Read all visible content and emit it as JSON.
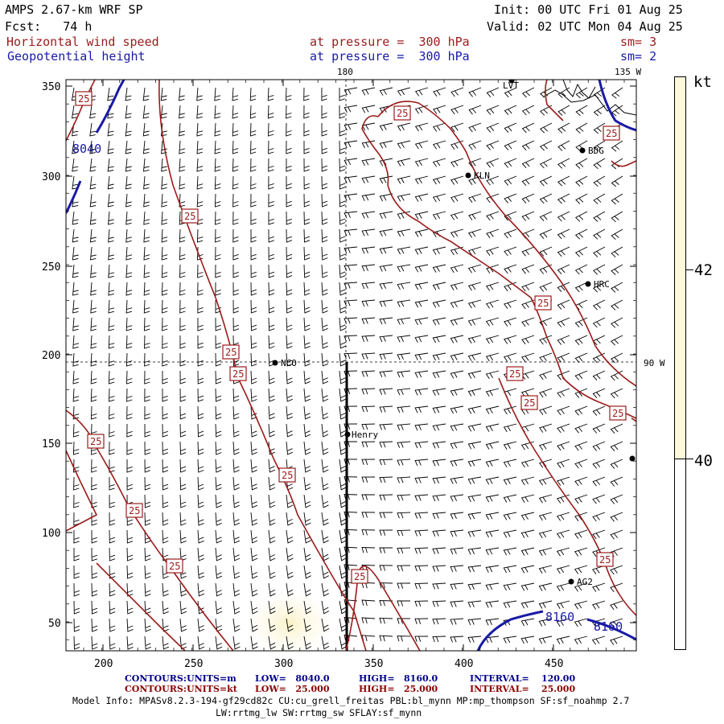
{
  "header": {
    "model": "AMPS 2.67-km WRF SP",
    "init": "Init: 00 UTC Fri 01 Aug 25",
    "fcst": "Fcst:   74 h",
    "valid": "Valid: 02 UTC Mon 04 Aug 25",
    "field1_name": "Horizontal wind speed",
    "field1_level": "at pressure =  300 hPa",
    "field1_sm": "sm= 3",
    "field2_name": "Geopotential height",
    "field2_level": "at pressure =  300 hPa",
    "field2_sm": "sm= 2"
  },
  "map": {
    "meridian_labels": [
      "180",
      "135 W",
      "90 W"
    ],
    "x_ticks": [
      "200",
      "250",
      "300",
      "350",
      "400",
      "450"
    ],
    "y_ticks": [
      "350",
      "300",
      "250",
      "200",
      "150",
      "100",
      "50"
    ],
    "stations": [
      {
        "name": "LVT"
      },
      {
        "name": "BDG"
      },
      {
        "name": "KLN"
      },
      {
        "name": "HRC"
      },
      {
        "name": "NCO"
      },
      {
        "name": "Henry"
      },
      {
        "name": "AG2"
      },
      {
        "name": ""
      }
    ],
    "wind_contour_label": "25",
    "height_contour_labels": [
      "8040",
      "8160",
      "8160"
    ]
  },
  "colorbar": {
    "unit": "kt",
    "labels": [
      "42",
      "40"
    ],
    "colors": [
      "#fdf8dc",
      "#ffffff"
    ]
  },
  "footer": {
    "row1": {
      "label": "CONTOURS:",
      "units": "UNITS=m",
      "low": "LOW=   8040.0",
      "high": "HIGH=   8160.0",
      "interval": "INTERVAL=    120.00"
    },
    "row2": {
      "label": "CONTOURS:",
      "units": "UNITS=kt",
      "low": "LOW=   25.000",
      "high": "HIGH=   25.000",
      "interval": "INTERVAL=    25.000"
    },
    "model_info_1": "Model Info: MPASv8.2.3-194-gf29cd82c CU:cu_grell_freitas PBL:bl_mynn MP:mp_thompson SF:sf_noahmp 2.7",
    "model_info_2": "LW:rrtmg_lw SW:rrtmg_sw SFLAY:sf_mynn"
  },
  "colors": {
    "wind_contour": "#9b1b1b",
    "height_contour": "#1a1aa6",
    "label_red": "#9b1b1b",
    "label_blue": "#1a1aa6",
    "footer_blue": "#00008b",
    "footer_red": "#8b0000"
  }
}
